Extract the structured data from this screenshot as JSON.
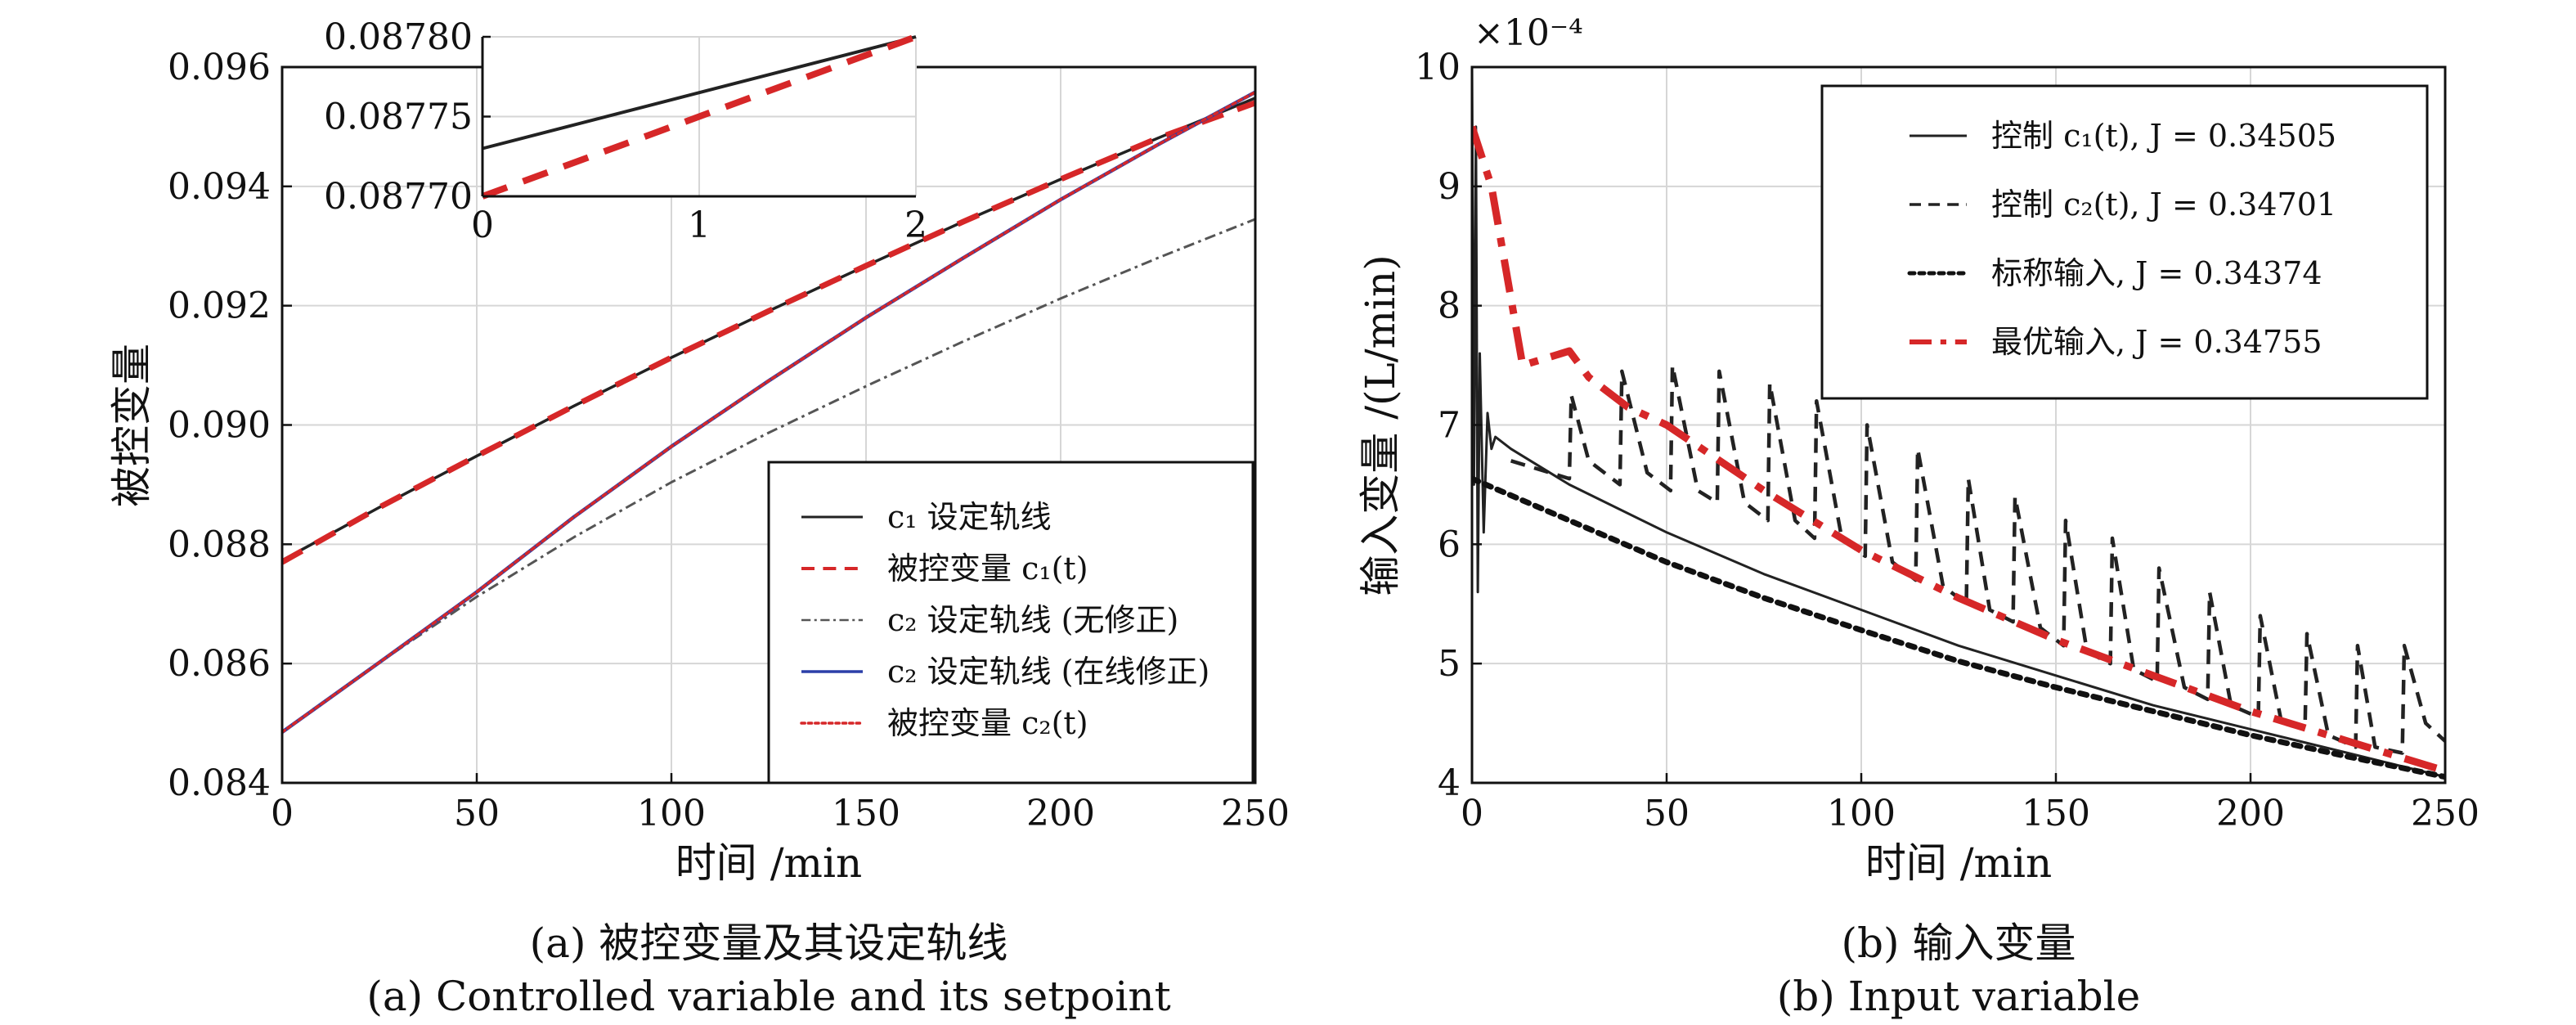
{
  "captions": {
    "a_cn": "(a) 被控变量及其设定轨线",
    "a_en": "(a) Controlled variable and its setpoint",
    "b_cn": "(b) 输入变量",
    "b_en": "(b) Input variable"
  },
  "chart_data": [
    {
      "type": "line",
      "panel": "a",
      "xlabel": "时间 /min",
      "ylabel": "被控变量",
      "xlim": [
        0,
        250
      ],
      "ylim": [
        0.084,
        0.096
      ],
      "xticks": [
        "0",
        "50",
        "100",
        "150",
        "200",
        "250"
      ],
      "yticks": [
        "0.084",
        "0.086",
        "0.088",
        "0.090",
        "0.092",
        "0.094",
        "0.096"
      ],
      "grid": true,
      "legend_position": "bottom-right",
      "x": [
        0,
        25,
        50,
        75,
        100,
        125,
        150,
        175,
        200,
        225,
        250
      ],
      "series": [
        {
          "name": "c₁ 设定轨线",
          "color": "#222222",
          "style": "solid",
          "values": [
            0.08773,
            0.08862,
            0.08948,
            0.09032,
            0.09113,
            0.09191,
            0.09267,
            0.09341,
            0.09412,
            0.09481,
            0.09548
          ]
        },
        {
          "name": "被控变量 c₁(t)",
          "color": "#d62728",
          "style": "dashed",
          "values": [
            0.0877,
            0.08862,
            0.08948,
            0.09032,
            0.09113,
            0.09191,
            0.09267,
            0.09341,
            0.09412,
            0.09481,
            0.0954
          ]
        },
        {
          "name": "c₂ 设定轨线 (无修正)",
          "color": "#555555",
          "style": "dashdot",
          "values": [
            0.08485,
            0.08602,
            0.08712,
            0.08812,
            0.08904,
            0.08987,
            0.09065,
            0.0914,
            0.09212,
            0.0928,
            0.09345
          ]
        },
        {
          "name": "c₂ 设定轨线 (在线修正)",
          "color": "#2b3fa8",
          "style": "solid",
          "values": [
            0.08485,
            0.08602,
            0.0872,
            0.08846,
            0.08964,
            0.09074,
            0.0918,
            0.0928,
            0.09378,
            0.0947,
            0.09558
          ]
        },
        {
          "name": "被控变量 c₂(t)",
          "color": "#d62728",
          "style": "dotted",
          "values": [
            0.08485,
            0.08602,
            0.0872,
            0.08846,
            0.08964,
            0.09074,
            0.0918,
            0.0928,
            0.09378,
            0.0947,
            0.09558
          ]
        }
      ],
      "inset": {
        "xlim": [
          0,
          2
        ],
        "ylim": [
          0.0877,
          0.0878
        ],
        "xticks": [
          "0",
          "1",
          "2"
        ],
        "yticks": [
          "0.08770",
          "0.08775",
          "0.08780"
        ],
        "x": [
          0,
          2
        ],
        "series": [
          {
            "name": "c₁ 设定轨线",
            "color": "#222222",
            "style": "solid",
            "values": [
              0.08773,
              0.0878
            ]
          },
          {
            "name": "被控变量 c₁(t)",
            "color": "#d62728",
            "style": "dashed",
            "values": [
              0.0877,
              0.0878
            ]
          }
        ]
      }
    },
    {
      "type": "line",
      "panel": "b",
      "xlabel": "时间 /min",
      "ylabel": "输入变量 /(L/min)",
      "scale_label": "×10⁻⁴",
      "xlim": [
        0,
        250
      ],
      "ylim": [
        4,
        10
      ],
      "xticks": [
        "0",
        "50",
        "100",
        "150",
        "200",
        "250"
      ],
      "yticks": [
        "4",
        "5",
        "6",
        "7",
        "8",
        "9",
        "10"
      ],
      "grid": true,
      "legend_position": "top-right",
      "series": [
        {
          "name": "控制 c₁(t), J = 0.34505",
          "color": "#222222",
          "style": "solid",
          "x": [
            0,
            0.5,
            1,
            1.5,
            2,
            3,
            4,
            5,
            6,
            10,
            25,
            50,
            75,
            100,
            125,
            150,
            175,
            200,
            225,
            250
          ],
          "values": [
            10,
            6.5,
            9.5,
            5.6,
            7.6,
            6.1,
            7.1,
            6.8,
            6.9,
            6.8,
            6.5,
            6.1,
            5.75,
            5.45,
            5.15,
            4.9,
            4.65,
            4.45,
            4.25,
            4.05
          ]
        },
        {
          "name": "控制 c₂(t), J = 0.34701",
          "color": "#222222",
          "style": "dashed",
          "x": [
            10,
            25,
            25.5,
            30,
            38,
            38.5,
            45,
            51,
            51.5,
            58,
            63,
            63.5,
            70,
            76,
            76.5,
            83,
            88,
            88.5,
            95,
            101,
            101.5,
            108,
            114,
            114.5,
            121,
            127,
            127.5,
            133,
            139,
            139.5,
            146,
            152,
            152.5,
            158,
            164,
            164.5,
            170,
            176,
            176.5,
            183,
            189,
            189.5,
            195,
            202,
            202.5,
            208,
            214,
            214.5,
            220,
            227,
            227.5,
            232,
            239,
            239.5,
            245,
            250
          ],
          "values": [
            6.7,
            6.55,
            7.25,
            6.7,
            6.5,
            7.45,
            6.6,
            6.45,
            7.5,
            6.45,
            6.35,
            7.45,
            6.35,
            6.2,
            7.35,
            6.2,
            6.05,
            7.2,
            6.05,
            5.9,
            7.0,
            5.85,
            5.7,
            6.8,
            5.65,
            5.5,
            6.55,
            5.45,
            5.35,
            6.4,
            5.3,
            5.15,
            6.2,
            5.1,
            5.0,
            6.05,
            4.95,
            4.85,
            5.8,
            4.8,
            4.7,
            5.6,
            4.65,
            4.55,
            5.4,
            4.5,
            4.45,
            5.25,
            4.4,
            4.3,
            5.15,
            4.3,
            4.25,
            5.15,
            4.5,
            4.35
          ]
        },
        {
          "name": "标称输入, J = 0.34374",
          "color": "#111111",
          "style": "dotted",
          "x": [
            0,
            25,
            50,
            75,
            100,
            125,
            150,
            175,
            200,
            225,
            250
          ],
          "values": [
            6.55,
            6.2,
            5.85,
            5.55,
            5.28,
            5.02,
            4.8,
            4.6,
            4.4,
            4.22,
            4.05
          ]
        },
        {
          "name": "最优输入, J = 0.34755",
          "color": "#d62728",
          "style": "dashdot",
          "x": [
            0,
            5,
            13,
            25,
            30,
            40,
            50,
            75,
            100,
            125,
            150,
            175,
            200,
            225,
            250
          ],
          "values": [
            9.5,
            9.0,
            7.5,
            7.62,
            7.4,
            7.15,
            7.0,
            6.45,
            5.95,
            5.55,
            5.2,
            4.9,
            4.6,
            4.35,
            4.1
          ]
        }
      ]
    }
  ]
}
